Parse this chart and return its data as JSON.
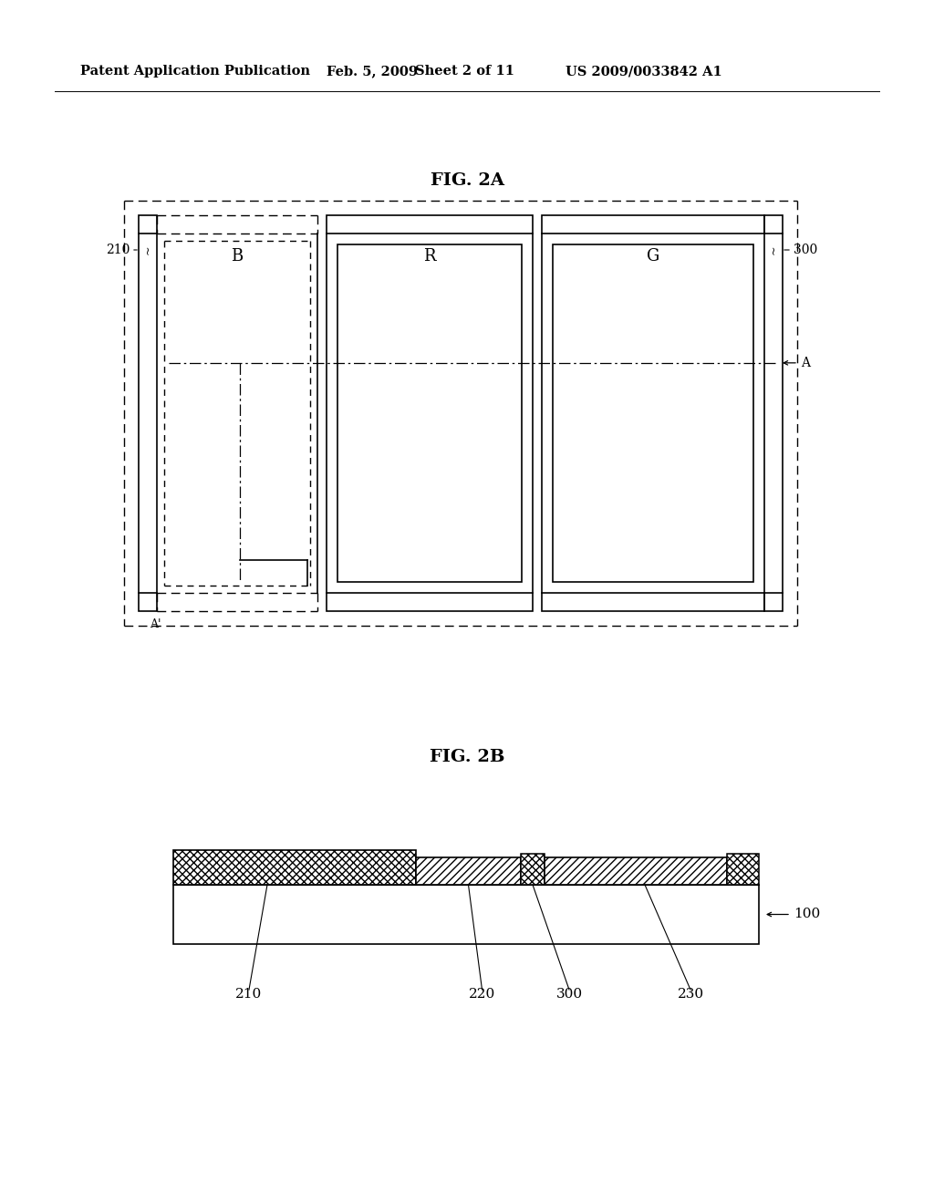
{
  "bg_color": "#ffffff",
  "header_text": "Patent Application Publication",
  "header_date": "Feb. 5, 2009",
  "header_sheet": "Sheet 2 of 11",
  "header_patent": "US 2009/0033842 A1",
  "fig2a_title": "FIG. 2A",
  "fig2b_title": "FIG. 2B",
  "label_210": "210",
  "label_300": "300",
  "label_100": "100",
  "label_220": "220",
  "label_230": "230",
  "label_B": "B",
  "label_R": "R",
  "label_G": "G",
  "label_A": "A",
  "label_Aprime": "A'"
}
